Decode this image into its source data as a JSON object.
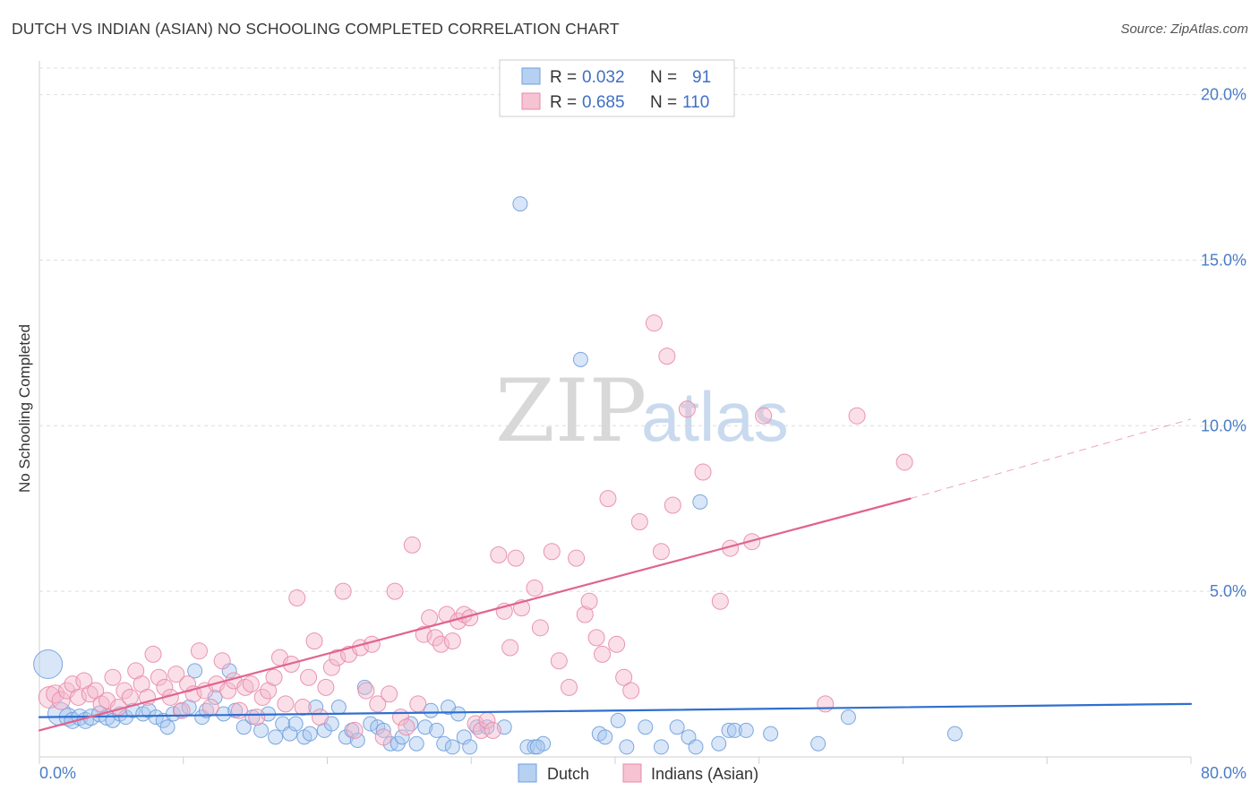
{
  "title": "DUTCH VS INDIAN (ASIAN) NO SCHOOLING COMPLETED CORRELATION CHART",
  "source": "Source: ZipAtlas.com",
  "watermark": {
    "zip": "ZIP",
    "atlas": "atlas"
  },
  "colors": {
    "dutch_fill": "#a9c8f0",
    "dutch_stroke": "#6f9fdc",
    "dutch_line": "#2f6fcf",
    "indian_fill": "#f5b8cb",
    "indian_stroke": "#e88aa8",
    "indian_line": "#e0648f",
    "grid": "#dddddd",
    "tick_text": "#4a7cc8"
  },
  "legend": {
    "rows": [
      {
        "series": "dutch",
        "r_label": "R = ",
        "r_value": "0.032",
        "n_label": "N = ",
        "n_value": "91"
      },
      {
        "series": "indian",
        "r_label": "R = ",
        "r_value": "0.685",
        "n_label": "N = ",
        "n_value": "110"
      }
    ]
  },
  "chart_data": {
    "type": "scatter",
    "title": "DUTCH VS INDIAN (ASIAN) NO SCHOOLING COMPLETED CORRELATION CHART",
    "xlabel": "",
    "ylabel": "No Schooling Completed",
    "xlim": [
      0,
      80
    ],
    "ylim": [
      0,
      20.8
    ],
    "x_tick_labels": [
      {
        "value": 0,
        "label": "0.0%"
      },
      {
        "value": 80,
        "label": "80.0%"
      }
    ],
    "y_tick_labels": [
      {
        "value": 5,
        "label": "5.0%"
      },
      {
        "value": 10,
        "label": "10.0%"
      },
      {
        "value": 15,
        "label": "15.0%"
      },
      {
        "value": 20,
        "label": "20.0%"
      }
    ],
    "grid": true,
    "legend_position": "bottom-center",
    "series": [
      {
        "name": "Dutch",
        "key": "dutch",
        "r": 0.032,
        "n": 91,
        "trend": {
          "x0": 0,
          "y0": 1.2,
          "x1": 80,
          "y1": 1.6,
          "dash_from": null
        },
        "points": [
          [
            0.6,
            2.8,
            16
          ],
          [
            1.4,
            1.3,
            13
          ],
          [
            2.0,
            1.2,
            10
          ],
          [
            2.3,
            1.1,
            9
          ],
          [
            2.8,
            1.2,
            9
          ],
          [
            3.2,
            1.1,
            9
          ],
          [
            3.6,
            1.2,
            9
          ],
          [
            4.2,
            1.3,
            9
          ],
          [
            4.7,
            1.2,
            9
          ],
          [
            5.1,
            1.1,
            8
          ],
          [
            5.6,
            1.3,
            8
          ],
          [
            6.0,
            1.2,
            8
          ],
          [
            6.5,
            1.4,
            8
          ],
          [
            7.2,
            1.3,
            8
          ],
          [
            7.6,
            1.4,
            8
          ],
          [
            8.1,
            1.2,
            8
          ],
          [
            8.6,
            1.1,
            8
          ],
          [
            8.9,
            0.9,
            8
          ],
          [
            9.3,
            1.3,
            8
          ],
          [
            9.8,
            1.4,
            8
          ],
          [
            10.4,
            1.5,
            8
          ],
          [
            10.8,
            2.6,
            8
          ],
          [
            11.3,
            1.2,
            8
          ],
          [
            11.6,
            1.4,
            8
          ],
          [
            12.2,
            1.8,
            8
          ],
          [
            12.8,
            1.3,
            8
          ],
          [
            13.2,
            2.6,
            8
          ],
          [
            13.6,
            1.4,
            8
          ],
          [
            14.2,
            0.9,
            8
          ],
          [
            14.8,
            1.2,
            8
          ],
          [
            15.4,
            0.8,
            8
          ],
          [
            15.9,
            1.3,
            8
          ],
          [
            16.4,
            0.6,
            8
          ],
          [
            16.9,
            1.0,
            8
          ],
          [
            17.4,
            0.7,
            8
          ],
          [
            17.8,
            1.0,
            8
          ],
          [
            18.4,
            0.6,
            8
          ],
          [
            18.8,
            0.7,
            8
          ],
          [
            19.2,
            1.5,
            8
          ],
          [
            19.8,
            0.8,
            8
          ],
          [
            20.3,
            1.0,
            8
          ],
          [
            20.8,
            1.5,
            8
          ],
          [
            21.3,
            0.6,
            8
          ],
          [
            21.7,
            0.8,
            8
          ],
          [
            22.1,
            0.5,
            8
          ],
          [
            22.6,
            2.1,
            8
          ],
          [
            23.0,
            1.0,
            8
          ],
          [
            23.5,
            0.9,
            8
          ],
          [
            23.9,
            0.8,
            8
          ],
          [
            24.4,
            0.4,
            8
          ],
          [
            24.9,
            0.4,
            8
          ],
          [
            25.2,
            0.6,
            8
          ],
          [
            25.8,
            1.0,
            8
          ],
          [
            26.2,
            0.4,
            8
          ],
          [
            26.8,
            0.9,
            8
          ],
          [
            27.2,
            1.4,
            8
          ],
          [
            27.6,
            0.8,
            8
          ],
          [
            28.1,
            0.4,
            8
          ],
          [
            28.7,
            0.3,
            8
          ],
          [
            29.1,
            1.3,
            8
          ],
          [
            29.5,
            0.6,
            8
          ],
          [
            29.9,
            0.3,
            8
          ],
          [
            30.4,
            0.9,
            8
          ],
          [
            31.1,
            0.9,
            8
          ],
          [
            32.3,
            0.9,
            8
          ],
          [
            33.4,
            16.7,
            8
          ],
          [
            33.9,
            0.3,
            8
          ],
          [
            34.4,
            0.3,
            8
          ],
          [
            35.0,
            0.4,
            8
          ],
          [
            37.6,
            12.0,
            8
          ],
          [
            38.9,
            0.7,
            8
          ],
          [
            39.3,
            0.6,
            8
          ],
          [
            40.2,
            1.1,
            8
          ],
          [
            40.8,
            0.3,
            8
          ],
          [
            42.1,
            0.9,
            8
          ],
          [
            43.2,
            0.3,
            8
          ],
          [
            44.3,
            0.9,
            8
          ],
          [
            45.1,
            0.6,
            8
          ],
          [
            45.6,
            0.3,
            8
          ],
          [
            45.9,
            7.7,
            8
          ],
          [
            47.2,
            0.4,
            8
          ],
          [
            47.9,
            0.8,
            8
          ],
          [
            48.3,
            0.8,
            8
          ],
          [
            49.1,
            0.8,
            8
          ],
          [
            50.8,
            0.7,
            8
          ],
          [
            54.1,
            0.4,
            8
          ],
          [
            56.2,
            1.2,
            8
          ],
          [
            63.6,
            0.7,
            8
          ],
          [
            34.6,
            0.3,
            8
          ],
          [
            28.4,
            1.5,
            8
          ]
        ]
      },
      {
        "name": "Indians (Asian)",
        "key": "indian",
        "r": 0.685,
        "n": 110,
        "trend": {
          "x0": 0,
          "y0": 0.8,
          "x1": 60.5,
          "y1": 7.8,
          "dash_from": 60.5,
          "dash_to": 80,
          "dash_y_end": 10.2
        },
        "points": [
          [
            0.7,
            1.8,
            12
          ],
          [
            1.1,
            1.9,
            10
          ],
          [
            1.5,
            1.7,
            10
          ],
          [
            1.9,
            2.0,
            9
          ],
          [
            2.3,
            2.2,
            9
          ],
          [
            2.7,
            1.8,
            9
          ],
          [
            3.1,
            2.3,
            9
          ],
          [
            3.5,
            1.9,
            9
          ],
          [
            3.9,
            2.0,
            9
          ],
          [
            4.3,
            1.6,
            9
          ],
          [
            4.7,
            1.7,
            9
          ],
          [
            5.1,
            2.4,
            9
          ],
          [
            5.5,
            1.5,
            9
          ],
          [
            5.9,
            2.0,
            9
          ],
          [
            6.3,
            1.8,
            9
          ],
          [
            6.7,
            2.6,
            9
          ],
          [
            7.1,
            2.2,
            9
          ],
          [
            7.5,
            1.8,
            9
          ],
          [
            7.9,
            3.1,
            9
          ],
          [
            8.3,
            2.4,
            9
          ],
          [
            8.7,
            2.1,
            9
          ],
          [
            9.1,
            1.8,
            9
          ],
          [
            9.5,
            2.5,
            9
          ],
          [
            9.9,
            1.4,
            9
          ],
          [
            10.3,
            2.2,
            9
          ],
          [
            10.7,
            1.9,
            9
          ],
          [
            11.1,
            3.2,
            9
          ],
          [
            11.5,
            2.0,
            9
          ],
          [
            11.9,
            1.5,
            9
          ],
          [
            12.3,
            2.2,
            9
          ],
          [
            12.7,
            2.9,
            9
          ],
          [
            13.1,
            2.0,
            9
          ],
          [
            13.5,
            2.3,
            9
          ],
          [
            13.9,
            1.4,
            9
          ],
          [
            14.3,
            2.1,
            9
          ],
          [
            14.7,
            2.2,
            9
          ],
          [
            15.1,
            1.2,
            9
          ],
          [
            15.5,
            1.8,
            9
          ],
          [
            15.9,
            2.0,
            9
          ],
          [
            16.3,
            2.4,
            9
          ],
          [
            16.7,
            3.0,
            9
          ],
          [
            17.1,
            1.6,
            9
          ],
          [
            17.5,
            2.8,
            9
          ],
          [
            17.9,
            4.8,
            9
          ],
          [
            18.3,
            1.5,
            9
          ],
          [
            18.7,
            2.4,
            9
          ],
          [
            19.1,
            3.5,
            9
          ],
          [
            19.5,
            1.2,
            9
          ],
          [
            19.9,
            2.1,
            9
          ],
          [
            20.3,
            2.7,
            9
          ],
          [
            20.7,
            3.0,
            9
          ],
          [
            21.1,
            5.0,
            9
          ],
          [
            21.5,
            3.1,
            9
          ],
          [
            21.9,
            0.8,
            9
          ],
          [
            22.3,
            3.3,
            9
          ],
          [
            22.7,
            2.0,
            9
          ],
          [
            23.1,
            3.4,
            9
          ],
          [
            23.5,
            1.6,
            9
          ],
          [
            23.9,
            0.6,
            9
          ],
          [
            24.3,
            1.9,
            9
          ],
          [
            24.7,
            5.0,
            9
          ],
          [
            25.1,
            1.2,
            9
          ],
          [
            25.5,
            0.9,
            9
          ],
          [
            25.9,
            6.4,
            9
          ],
          [
            26.3,
            1.6,
            9
          ],
          [
            26.7,
            3.7,
            9
          ],
          [
            27.1,
            4.2,
            9
          ],
          [
            27.5,
            3.6,
            9
          ],
          [
            27.9,
            3.4,
            9
          ],
          [
            28.3,
            4.3,
            9
          ],
          [
            28.7,
            3.5,
            9
          ],
          [
            29.1,
            4.1,
            9
          ],
          [
            29.5,
            4.3,
            9
          ],
          [
            29.9,
            4.2,
            9
          ],
          [
            30.3,
            1.0,
            9
          ],
          [
            30.7,
            0.8,
            9
          ],
          [
            31.1,
            1.1,
            9
          ],
          [
            31.5,
            0.8,
            9
          ],
          [
            31.9,
            6.1,
            9
          ],
          [
            32.3,
            4.4,
            9
          ],
          [
            32.7,
            3.3,
            9
          ],
          [
            33.1,
            6.0,
            9
          ],
          [
            33.5,
            4.5,
            9
          ],
          [
            34.4,
            5.1,
            9
          ],
          [
            34.8,
            3.9,
            9
          ],
          [
            35.6,
            6.2,
            9
          ],
          [
            36.1,
            2.9,
            9
          ],
          [
            36.8,
            2.1,
            9
          ],
          [
            37.3,
            6.0,
            9
          ],
          [
            37.9,
            4.3,
            9
          ],
          [
            38.2,
            4.7,
            9
          ],
          [
            38.7,
            3.6,
            9
          ],
          [
            39.1,
            3.1,
            9
          ],
          [
            39.5,
            7.8,
            9
          ],
          [
            40.1,
            3.4,
            9
          ],
          [
            40.6,
            2.4,
            9
          ],
          [
            41.1,
            2.0,
            9
          ],
          [
            41.7,
            7.1,
            9
          ],
          [
            42.7,
            13.1,
            9
          ],
          [
            43.2,
            6.2,
            9
          ],
          [
            43.6,
            12.1,
            9
          ],
          [
            44.0,
            7.6,
            9
          ],
          [
            45.0,
            10.5,
            9
          ],
          [
            46.1,
            8.6,
            9
          ],
          [
            47.3,
            4.7,
            9
          ],
          [
            48.0,
            6.3,
            9
          ],
          [
            49.5,
            6.5,
            9
          ],
          [
            50.3,
            10.3,
            9
          ],
          [
            54.6,
            1.6,
            9
          ],
          [
            56.8,
            10.3,
            9
          ],
          [
            60.1,
            8.9,
            9
          ]
        ]
      }
    ]
  },
  "bottom_legend": [
    {
      "series": "dutch",
      "label": "Dutch"
    },
    {
      "series": "indian",
      "label": "Indians (Asian)"
    }
  ]
}
